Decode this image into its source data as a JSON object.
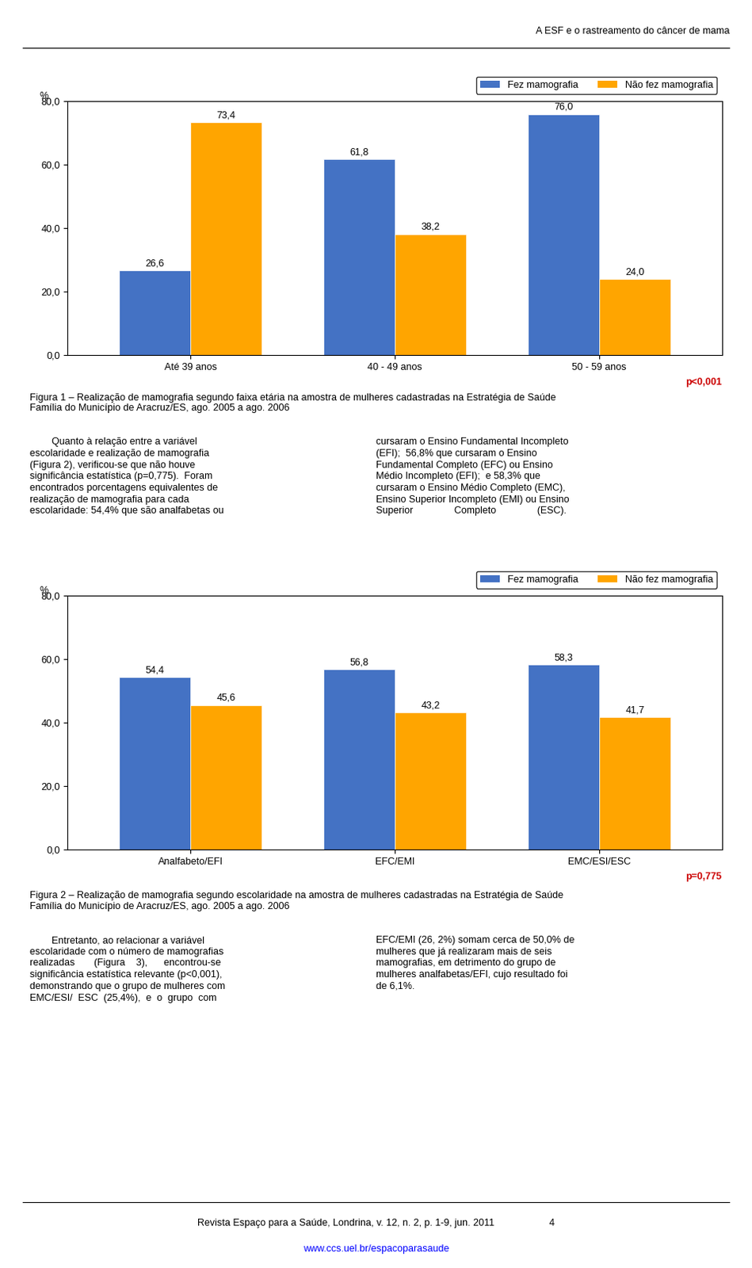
{
  "title": "A ESF e o rastreamento do câncer de mama",
  "annotations": [
    {
      "text": "Revista Espaço para a Saúde, Londrina, v. 12, n. 2, p. 1-9, jun. 2011                    4"
    },
    {
      "text": "www.ccs.uel.br/espacoparasaude",
      "color": "#0000FF"
    }
  ],
  "chart_data": [
    {
      "type": "bar",
      "title": "Figura 1 – Realização de mamografia segundo faixa etária na amostra de mulheres cadastradas na Estratégia de Saúde\nFamília do Município de Aracruz/ES, ago. 2005 a ago. 2006",
      "y_label": "%",
      "categories": [
        "Até 39 anos",
        "40 - 49 anos",
        "50 - 59 anos"
      ],
      "series": [
        {
          "name": "Fez mamografia",
          "color": "#4472C4",
          "values": [
            26.6,
            61.8,
            76.0
          ],
          "value_labels": [
            "26,6",
            "61,8",
            "76,0"
          ]
        },
        {
          "name": "Não fez mamografia",
          "color": "#FFA500",
          "values": [
            73.4,
            38.2,
            24.0
          ],
          "value_labels": [
            "73,4",
            "38,2",
            "24,0"
          ]
        }
      ],
      "ylim": [
        0,
        80
      ],
      "yticks": [
        {
          "value": 0.0,
          "label": "0,0"
        },
        {
          "value": 20.0,
          "label": "20,0"
        },
        {
          "value": 40.0,
          "label": "40,0"
        },
        {
          "value": 60.0,
          "label": "60,0"
        },
        {
          "value": 80.0,
          "label": "80,0"
        }
      ],
      "data_labels": true,
      "grid": false,
      "legend": "upper right",
      "annotations": [
        {
          "text": "p<0,001",
          "color": "#CC0000"
        },
        {
          "text": "        Quanto à relação entre a variável\nescolaridade e realização de mamografia\n(Figura 2), verificou-se que não houve\nsignificância estatística (p=0,775).  Foram\nencontrados porcentagens equivalentes de\nrealização de mamografia para cada\nescolaridade: 54,4% que são analfabetas ou"
        },
        {
          "text": "cursaram o Ensino Fundamental Incompleto\n(EFI);  56,8% que cursaram o Ensino\nFundamental Completo (EFC) ou Ensino\nMédio Incompleto (EFI);  e 58,3% que\ncursaram o Ensino Médio Completo (EMC),\nEnsino Superior Incompleto (EMI) ou Ensino\nSuperior               Completo               (ESC)."
        }
      ]
    },
    {
      "type": "bar",
      "title": "Figura 2 – Realização de mamografia segundo escolaridade na amostra de mulheres cadastradas na Estratégia de Saúde\nFamília do Município de Aracruz/ES, ago. 2005 a ago. 2006",
      "y_label": "%",
      "categories": [
        "Analfabeto/EFI",
        "EFC/EMI",
        "EMC/ESI/ESC"
      ],
      "series": [
        {
          "name": "Fez mamografia",
          "color": "#4472C4",
          "values": [
            54.4,
            56.8,
            58.3
          ],
          "value_labels": [
            "54,4",
            "56,8",
            "58,3"
          ]
        },
        {
          "name": "Não fez mamografia",
          "color": "#FFA500",
          "values": [
            45.6,
            43.2,
            41.7
          ],
          "value_labels": [
            "45,6",
            "43,2",
            "41,7"
          ]
        }
      ],
      "ylim": [
        0,
        80
      ],
      "yticks": [
        {
          "value": 0.0,
          "label": "0,0"
        },
        {
          "value": 20.0,
          "label": "20,0"
        },
        {
          "value": 40.0,
          "label": "40,0"
        },
        {
          "value": 60.0,
          "label": "60,0"
        },
        {
          "value": 80.0,
          "label": "80,0"
        }
      ],
      "data_labels": true,
      "grid": false,
      "legend": "upper right",
      "annotations": [
        {
          "text": "p=0,775",
          "color": "#CC0000"
        },
        {
          "text": "        Entretanto, ao relacionar a variável\nescolaridade com o número de mamografias\nrealizadas       (Figura    3),      encontrou-se\nsignificância estatística relevante (p<0,001),\ndemonstrando que o grupo de mulheres com\nEMC/ESI/  ESC  (25,4%),  e  o  grupo  com"
        },
        {
          "text": "EFC/EMI (26, 2%) somam cerca de 50,0% de\nmulheres que já realizaram mais de seis\nmamografias, em detrimento do grupo de\nmulheres analfabetas/EFI, cujo resultado foi\nde 6,1%."
        }
      ]
    }
  ]
}
